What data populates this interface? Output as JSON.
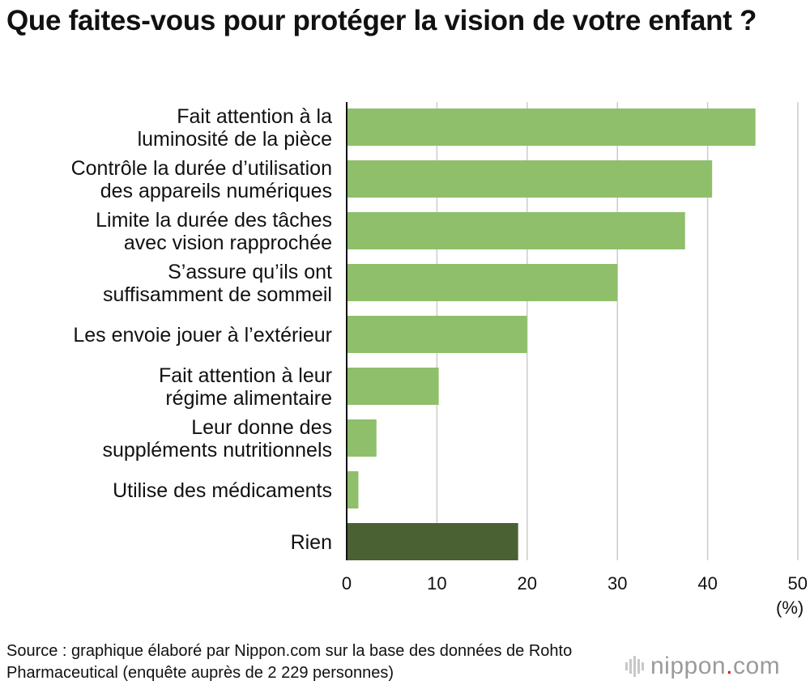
{
  "title": "Que faites-vous pour protéger la vision de votre enfant ?",
  "unit_label": "(%)",
  "source": "Source : graphique élaboré par Nippon.com sur la base des données de Rohto Pharmaceutical (enquête auprès de 2 229 personnes)",
  "logo": {
    "name": "nippon",
    "dot": ".",
    "tld": "com"
  },
  "colors": {
    "bar": "#8fbf6a",
    "bar_highlight": "#4a6134",
    "grid": "#cccccc",
    "axis": "#111111"
  },
  "chart_data": {
    "type": "bar",
    "orientation": "horizontal",
    "title": "Que faites-vous pour protéger la vision de votre enfant ?",
    "xlim": [
      0,
      50
    ],
    "xticks": [
      0,
      10,
      20,
      30,
      40,
      50
    ],
    "xlabel": "(%)",
    "grid": true,
    "categories": [
      [
        "Fait attention à la",
        "luminosité de la pièce"
      ],
      [
        "Contrôle la durée d’utilisation",
        "des appareils numériques"
      ],
      [
        "Limite la durée des tâches",
        "avec vision rapprochée"
      ],
      [
        "S’assure qu’ils ont",
        "suffisamment de sommeil"
      ],
      [
        "Les envoie jouer à l’extérieur"
      ],
      [
        "Fait attention à leur",
        "régime alimentaire"
      ],
      [
        "Leur donne des",
        "suppléments nutritionnels"
      ],
      [
        "Utilise des médicaments"
      ],
      [
        "Rien"
      ]
    ],
    "values": [
      45.3,
      40.5,
      37.5,
      30.0,
      20.0,
      10.2,
      3.3,
      1.3,
      19.0
    ],
    "highlight_index": 8
  }
}
